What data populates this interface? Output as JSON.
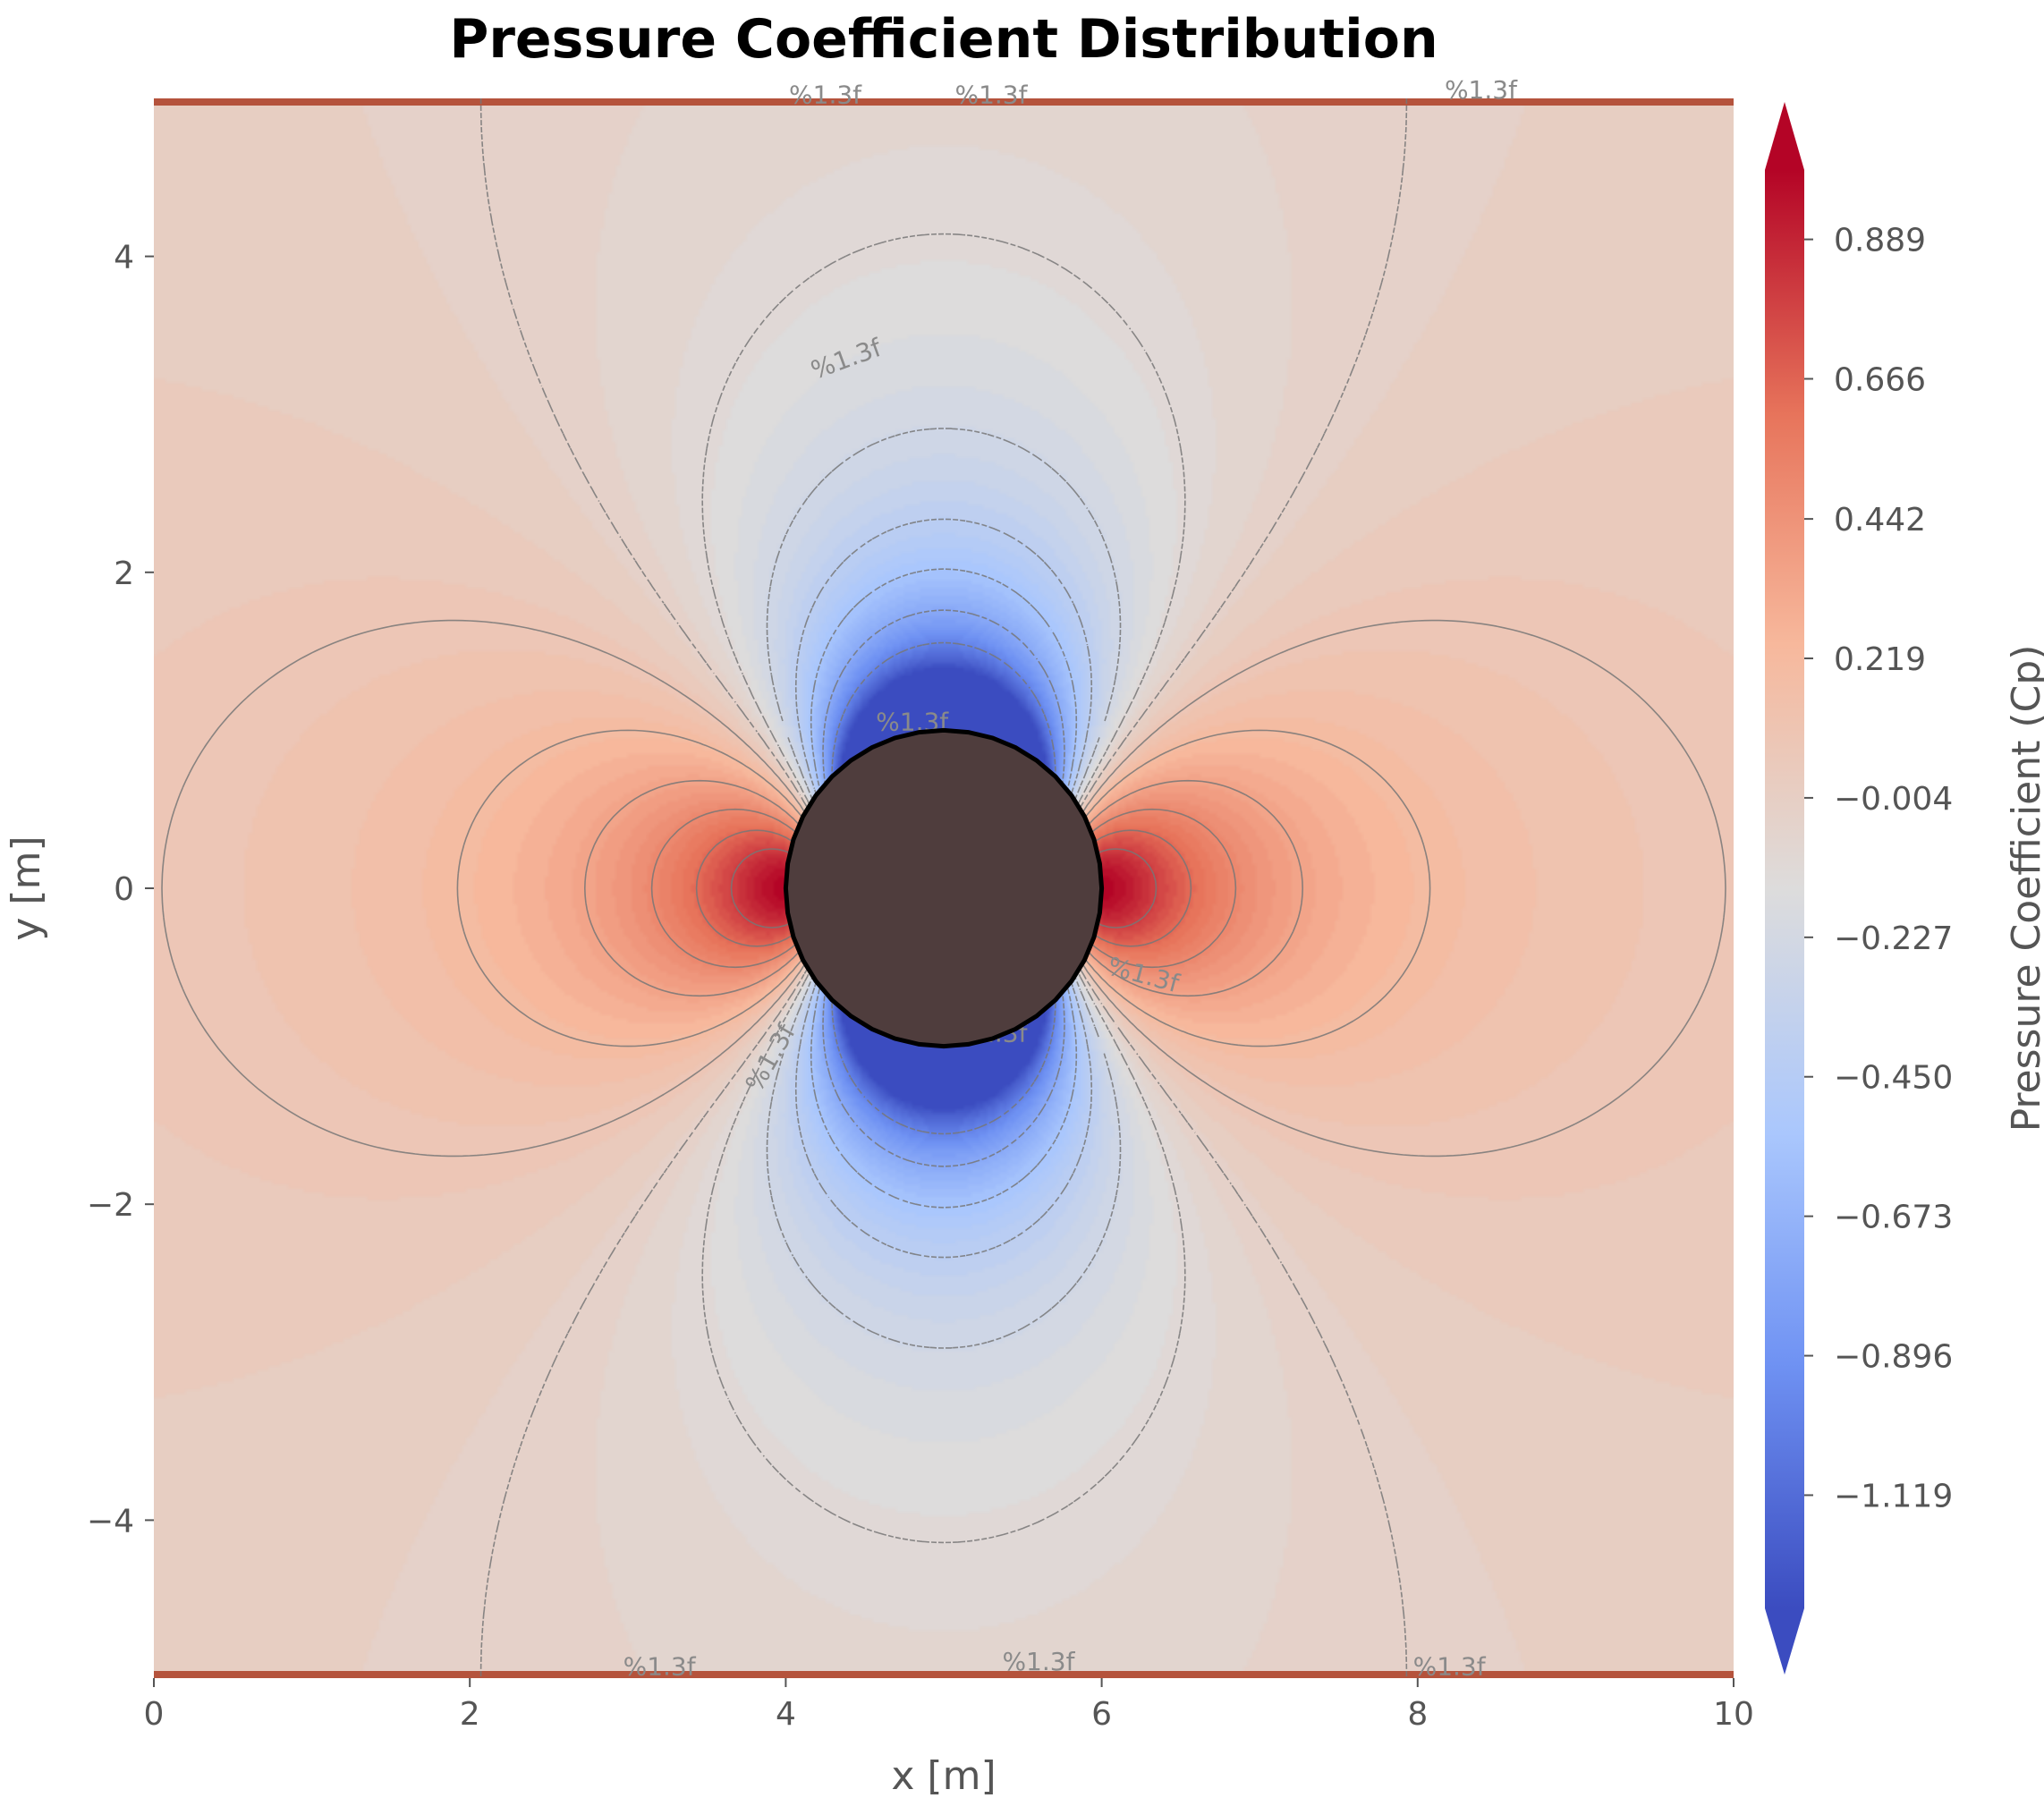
{
  "chart_data": {
    "type": "heatmap",
    "subtype": "filled-contour",
    "title": "Pressure Coefficient Distribution",
    "xlabel": "x [m]",
    "ylabel": "y [m]",
    "colorbar_label": "Pressure Coefficient (Cp)",
    "colormap": "coolwarm",
    "xlim": [
      0,
      10
    ],
    "ylim": [
      -5,
      5
    ],
    "xticks": [
      0,
      2,
      4,
      6,
      8,
      10
    ],
    "yticks": [
      -4,
      -2,
      0,
      2,
      4
    ],
    "xtick_labels": [
      "0",
      "2",
      "4",
      "6",
      "8",
      "10"
    ],
    "ytick_labels": [
      "−4",
      "−2",
      "0",
      "2",
      "4"
    ],
    "colorbar_ticks": [
      0.889,
      0.666,
      0.442,
      0.219,
      -0.004,
      -0.227,
      -0.45,
      -0.673,
      -0.896,
      -1.119
    ],
    "colorbar_tick_labels": [
      "0.889",
      "0.666",
      "0.442",
      "0.219",
      "−0.004",
      "−0.227",
      "−0.450",
      "−0.673",
      "−0.896",
      "−1.119"
    ],
    "colorbar_range": [
      -1.3,
      1.0
    ],
    "colorbar_extend": "both",
    "cylinder": {
      "center_x": 5,
      "center_y": 0,
      "radius": 1,
      "color": "#4f3d3d"
    },
    "max_cp": 1.0,
    "min_cp": -1.3,
    "contour_label_text": "%1.3f",
    "contour_label_positions": [
      {
        "x": 4.4,
        "y": 3.3,
        "rot": -20
      },
      {
        "x": 4.8,
        "y": 1.0,
        "rot": 0
      },
      {
        "x": 6.25,
        "y": -0.6,
        "rot": 15
      },
      {
        "x": 3.95,
        "y": -1.1,
        "rot": -60
      },
      {
        "x": 5.3,
        "y": -0.97,
        "rot": 0
      },
      {
        "x": 4.25,
        "y": 4.97,
        "rot": 0
      },
      {
        "x": 5.3,
        "y": 4.97,
        "rot": 0
      },
      {
        "x": 8.4,
        "y": 5.0,
        "rot": 0
      },
      {
        "x": 3.2,
        "y": -4.98,
        "rot": 0
      },
      {
        "x": 5.6,
        "y": -4.95,
        "rot": 0
      },
      {
        "x": 8.2,
        "y": -4.98,
        "rot": 0
      }
    ],
    "grid": false
  },
  "colors": {
    "colormap_stops": [
      "#3b4cc0",
      "#6f92f3",
      "#aac7fd",
      "#dddcdc",
      "#f7b89c",
      "#e7745b",
      "#b40426"
    ],
    "cylinder_fill": "#4f3d3d",
    "cylinder_edge": "#000000",
    "contour_line": "#777777",
    "wall_strip": "#b5533c"
  }
}
